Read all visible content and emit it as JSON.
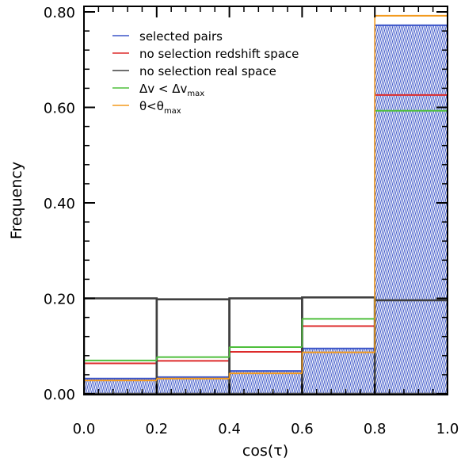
{
  "chart_data": {
    "type": "bar",
    "subtype": "step-histogram",
    "xlabel": "cos(τ)",
    "ylabel": "Frequency",
    "xlim": [
      0.0,
      1.0
    ],
    "ylim": [
      0.0,
      0.8
    ],
    "grid": false,
    "legend_position": "top-left",
    "x_ticks": [
      "0.0",
      "0.2",
      "0.4",
      "0.6",
      "0.8",
      "1.0"
    ],
    "y_ticks": [
      "0.00",
      "0.20",
      "0.40",
      "0.60",
      "0.80"
    ],
    "bin_edges": [
      0.0,
      0.2,
      0.4,
      0.6,
      0.8,
      1.0
    ],
    "series": [
      {
        "name": "selected pairs",
        "color": "#3b55c8",
        "hatched": true,
        "values": [
          0.032,
          0.035,
          0.048,
          0.095,
          0.772
        ]
      },
      {
        "name": "no selection redshift space",
        "color": "#dd2b2b",
        "values": [
          0.064,
          0.069,
          0.088,
          0.142,
          0.626
        ]
      },
      {
        "name": "no selection real space",
        "color": "#3f3f3f",
        "values": [
          0.2,
          0.198,
          0.2,
          0.202,
          0.196
        ]
      },
      {
        "name": "Δv < Δv",
        "name_sub": "max",
        "color": "#4ebf3c",
        "values": [
          0.07,
          0.077,
          0.098,
          0.157,
          0.593
        ]
      },
      {
        "name": "θ<θ",
        "name_sub": "max",
        "color": "#f39a1d",
        "values": [
          0.028,
          0.032,
          0.043,
          0.087,
          0.792
        ]
      }
    ]
  }
}
